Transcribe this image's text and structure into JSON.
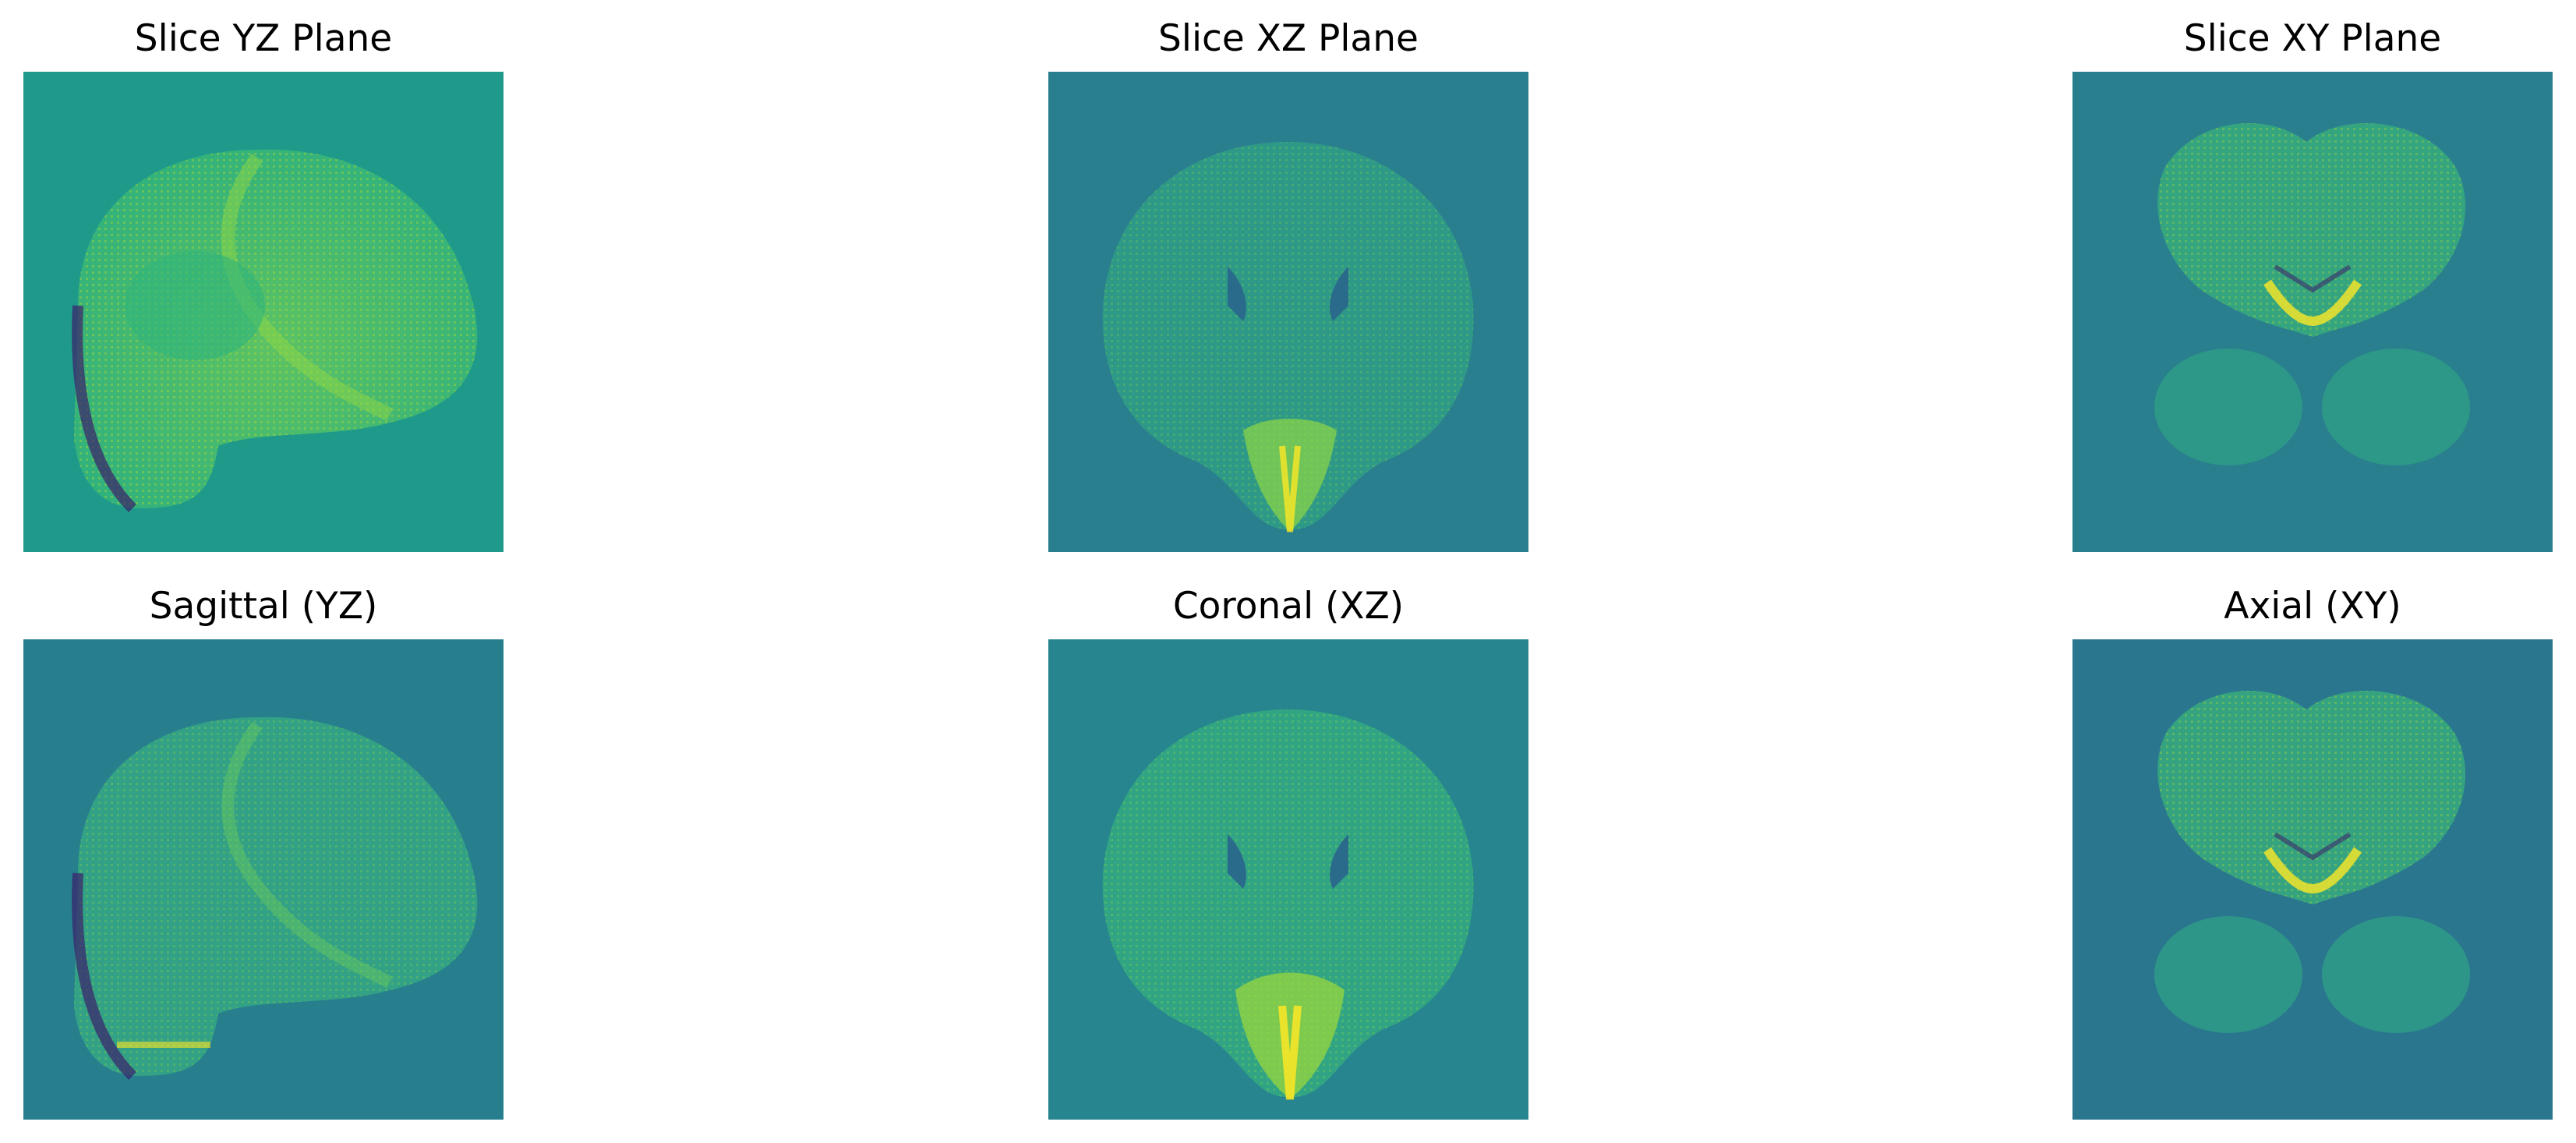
{
  "figure": {
    "panels": [
      {
        "id": "slice-yz",
        "title": "Slice YZ Plane",
        "view": "sagittal",
        "background": "#1f9a8a"
      },
      {
        "id": "slice-xz",
        "title": "Slice XZ Plane",
        "view": "coronal",
        "background": "#2a7f8e"
      },
      {
        "id": "slice-xy",
        "title": "Slice XY Plane",
        "view": "axial",
        "background": "#2a7f8e"
      },
      {
        "id": "sagittal",
        "title": "Sagittal (YZ)",
        "view": "sagittal",
        "background": "#277f8e"
      },
      {
        "id": "coronal",
        "title": "Coronal (XZ)",
        "view": "coronal",
        "background": "#26858e"
      },
      {
        "id": "axial",
        "title": "Axial (XY)",
        "view": "axial",
        "background": "#2a768e"
      }
    ],
    "colormap": [
      "#440154",
      "#3b528b",
      "#21918c",
      "#5ec962",
      "#fde725"
    ]
  }
}
